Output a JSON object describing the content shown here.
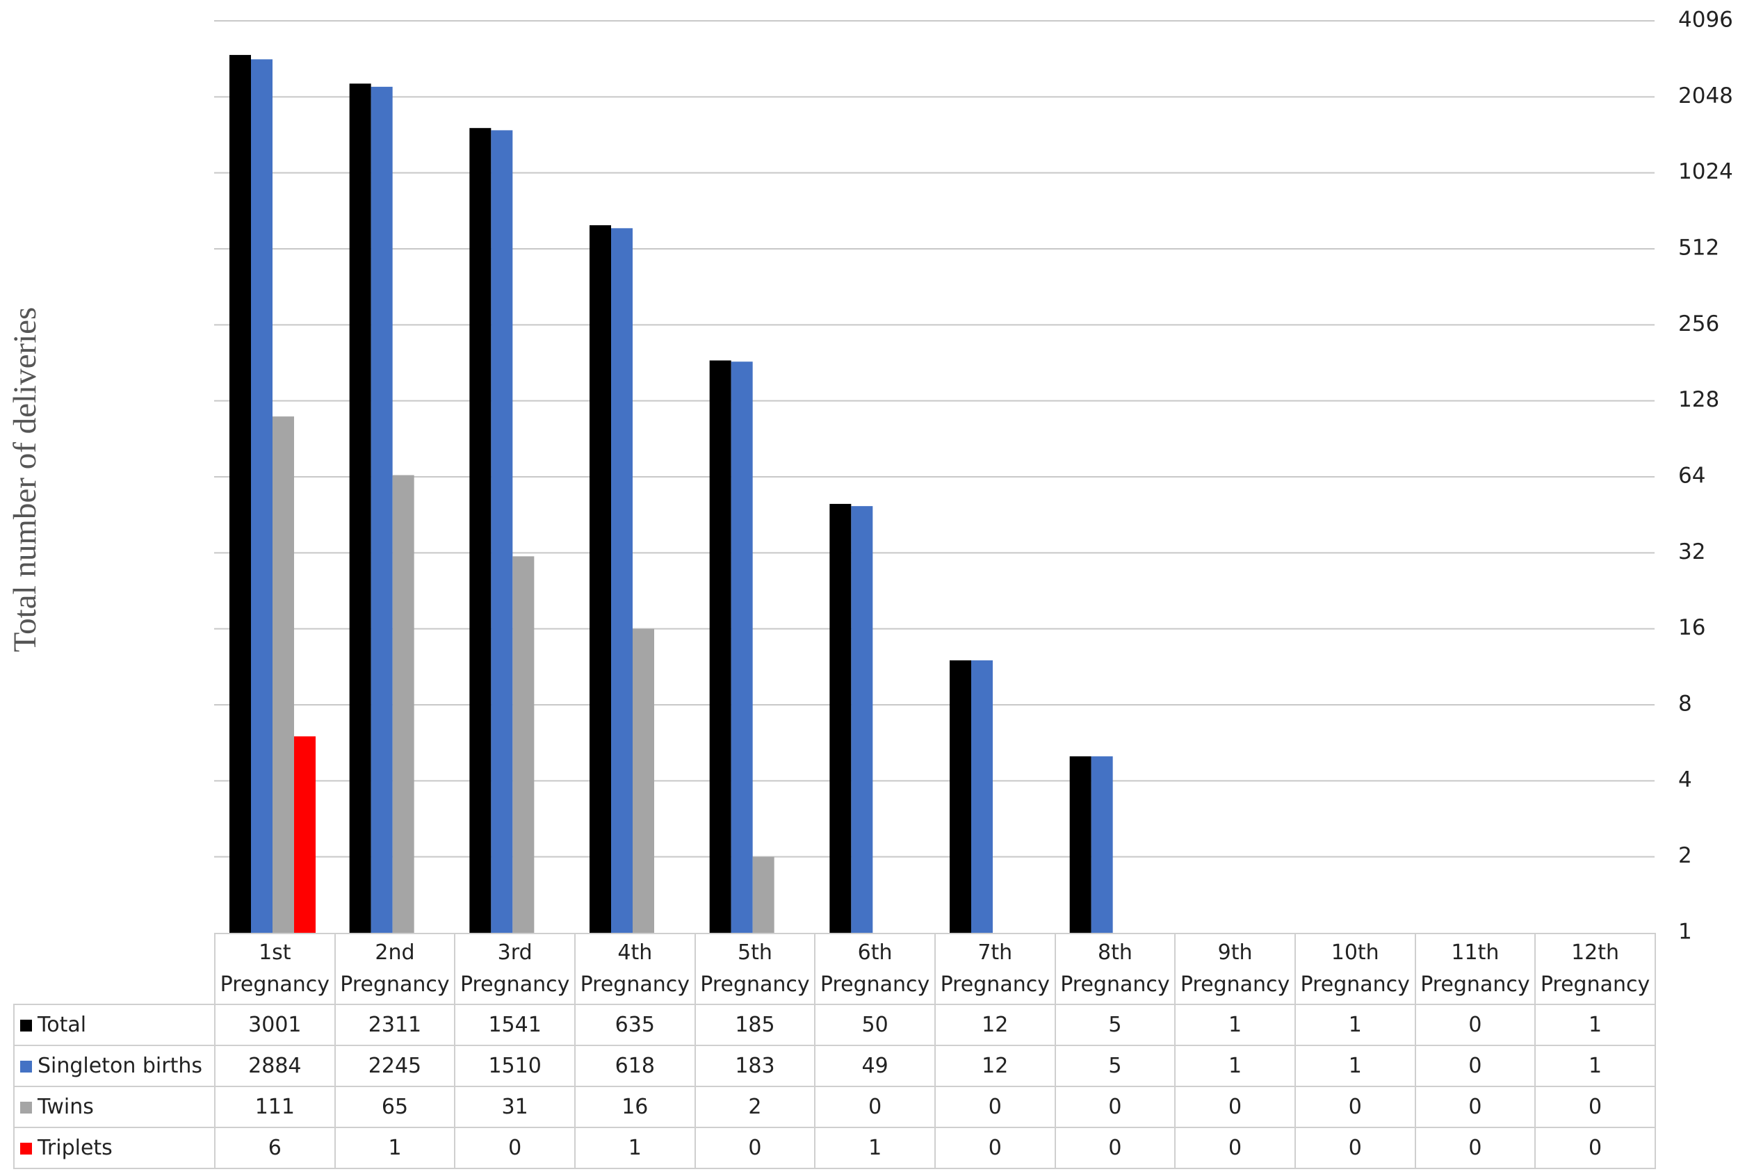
{
  "chart_data": {
    "type": "bar",
    "y_label": "Total number of deliveries",
    "log_scale": 2,
    "grid": true,
    "legend": "table",
    "categories": [
      "1st Pregnancy",
      "2nd Pregnancy",
      "3rd Pregnancy",
      "4th Pregnancy",
      "5th Pregnancy",
      "6th Pregnancy",
      "7th Pregnancy",
      "8th Pregnancy",
      "9th Pregnancy",
      "10th Pregnancy",
      "11th Pregnancy",
      "12th Pregnancy"
    ],
    "series": [
      {
        "name": "Total",
        "color": "#000000",
        "values": [
          3001,
          2311,
          1541,
          635,
          185,
          50,
          12,
          5,
          1,
          1,
          0,
          1
        ]
      },
      {
        "name": "Singleton births",
        "color": "#4472c4",
        "values": [
          2884,
          2245,
          1510,
          618,
          183,
          49,
          12,
          5,
          1,
          1,
          0,
          1
        ]
      },
      {
        "name": "Twins",
        "color": "#a5a5a5",
        "values": [
          111,
          65,
          31,
          16,
          2,
          0,
          0,
          0,
          0,
          0,
          0,
          0
        ]
      },
      {
        "name": "Triplets",
        "color": "#ff0000",
        "values": [
          6,
          1,
          0,
          1,
          0,
          1,
          0,
          0,
          0,
          0,
          0,
          0
        ]
      }
    ],
    "ylim": [
      1,
      4096
    ],
    "yticks": [
      1,
      2,
      4,
      8,
      16,
      32,
      64,
      128,
      256,
      512,
      1024,
      2048,
      4096
    ]
  }
}
